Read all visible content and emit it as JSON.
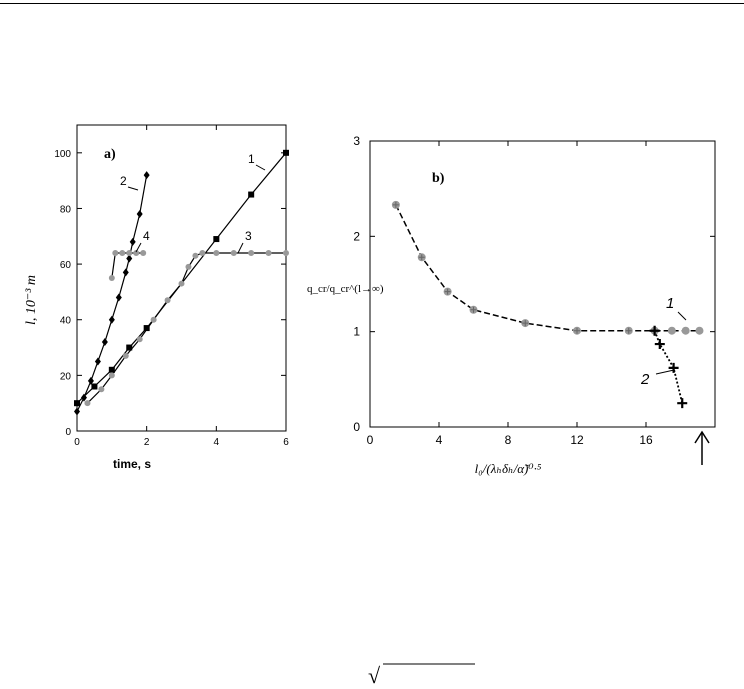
{
  "chart_data": [
    {
      "type": "scatter",
      "panel_label": "a)",
      "xlabel": "time, s",
      "ylabel": "l, 10⁻³ m",
      "xlim": [
        0,
        6
      ],
      "ylim": [
        0,
        110
      ],
      "xticks": [
        0,
        2,
        4,
        6
      ],
      "yticks": [
        0,
        20,
        40,
        60,
        80,
        100
      ],
      "grid": false,
      "series": [
        {
          "name": "1",
          "marker": "square",
          "color": "#000000",
          "line": "solid",
          "points": [
            [
              0,
              10
            ],
            [
              0.5,
              16
            ],
            [
              1,
              22
            ],
            [
              1.5,
              30
            ],
            [
              2,
              37
            ],
            [
              4,
              69
            ],
            [
              5,
              85
            ],
            [
              6,
              100
            ]
          ]
        },
        {
          "name": "2",
          "marker": "diamond",
          "color": "#000000",
          "line": "solid",
          "points": [
            [
              0,
              7
            ],
            [
              0.2,
              12
            ],
            [
              0.4,
              18
            ],
            [
              0.6,
              25
            ],
            [
              0.8,
              32
            ],
            [
              1,
              40
            ],
            [
              1.2,
              48
            ],
            [
              1.4,
              57
            ],
            [
              1.5,
              62
            ],
            [
              1.6,
              68
            ],
            [
              1.8,
              78
            ],
            [
              2,
              92
            ]
          ]
        },
        {
          "name": "3",
          "marker": "circle",
          "color": "#999999",
          "line": "solid",
          "points": [
            [
              0.3,
              10
            ],
            [
              0.7,
              15
            ],
            [
              1,
              20
            ],
            [
              1.4,
              27
            ],
            [
              1.8,
              33
            ],
            [
              2.2,
              40
            ],
            [
              2.6,
              47
            ],
            [
              3,
              53
            ],
            [
              3.2,
              59
            ],
            [
              3.4,
              63
            ],
            [
              3.6,
              64
            ],
            [
              4,
              64
            ],
            [
              4.5,
              64
            ],
            [
              5,
              64
            ],
            [
              5.5,
              64
            ],
            [
              6,
              64
            ]
          ]
        },
        {
          "name": "4",
          "marker": "circle",
          "color": "#999999",
          "line": "solid",
          "points": [
            [
              1,
              55
            ],
            [
              1.1,
              64
            ],
            [
              1.3,
              64
            ],
            [
              1.5,
              64
            ],
            [
              1.7,
              64
            ],
            [
              1.9,
              64
            ]
          ]
        }
      ],
      "annotations": [
        "1",
        "2",
        "3",
        "4"
      ]
    },
    {
      "type": "scatter",
      "panel_label": "b)",
      "xlabel": "l₀/(λₕδₕ/α̃)⁰·⁵",
      "ylabel": "q_cr/q_cr^(l→∞)",
      "xlim": [
        0,
        20
      ],
      "ylim": [
        0,
        3
      ],
      "xticks": [
        0,
        4,
        8,
        12,
        16
      ],
      "yticks": [
        0,
        1,
        2,
        3
      ],
      "grid": false,
      "series": [
        {
          "name": "dashed",
          "marker": "circle",
          "color": "#999999",
          "line": "dashed",
          "points": [
            [
              1.5,
              2.33
            ],
            [
              3,
              1.78
            ],
            [
              4.5,
              1.42
            ],
            [
              6,
              1.23
            ],
            [
              9,
              1.09
            ],
            [
              12,
              1.01
            ],
            [
              15,
              1.01
            ],
            [
              16.5,
              1.01
            ]
          ]
        },
        {
          "name": "1",
          "marker": "circle",
          "color": "#999999",
          "line": "dashed",
          "points": [
            [
              16.5,
              1.01
            ],
            [
              17.5,
              1.01
            ],
            [
              18.3,
              1.01
            ],
            [
              19.1,
              1.01
            ]
          ]
        },
        {
          "name": "2",
          "marker": "plus",
          "color": "#000000",
          "line": "dotted",
          "points": [
            [
              16.5,
              1.01
            ],
            [
              16.8,
              0.87
            ],
            [
              17.6,
              0.62
            ],
            [
              18.1,
              0.25
            ]
          ]
        }
      ],
      "annotations": [
        "1",
        "2"
      ],
      "arrow_marker": true
    }
  ],
  "footer": {
    "symbol": "√"
  }
}
